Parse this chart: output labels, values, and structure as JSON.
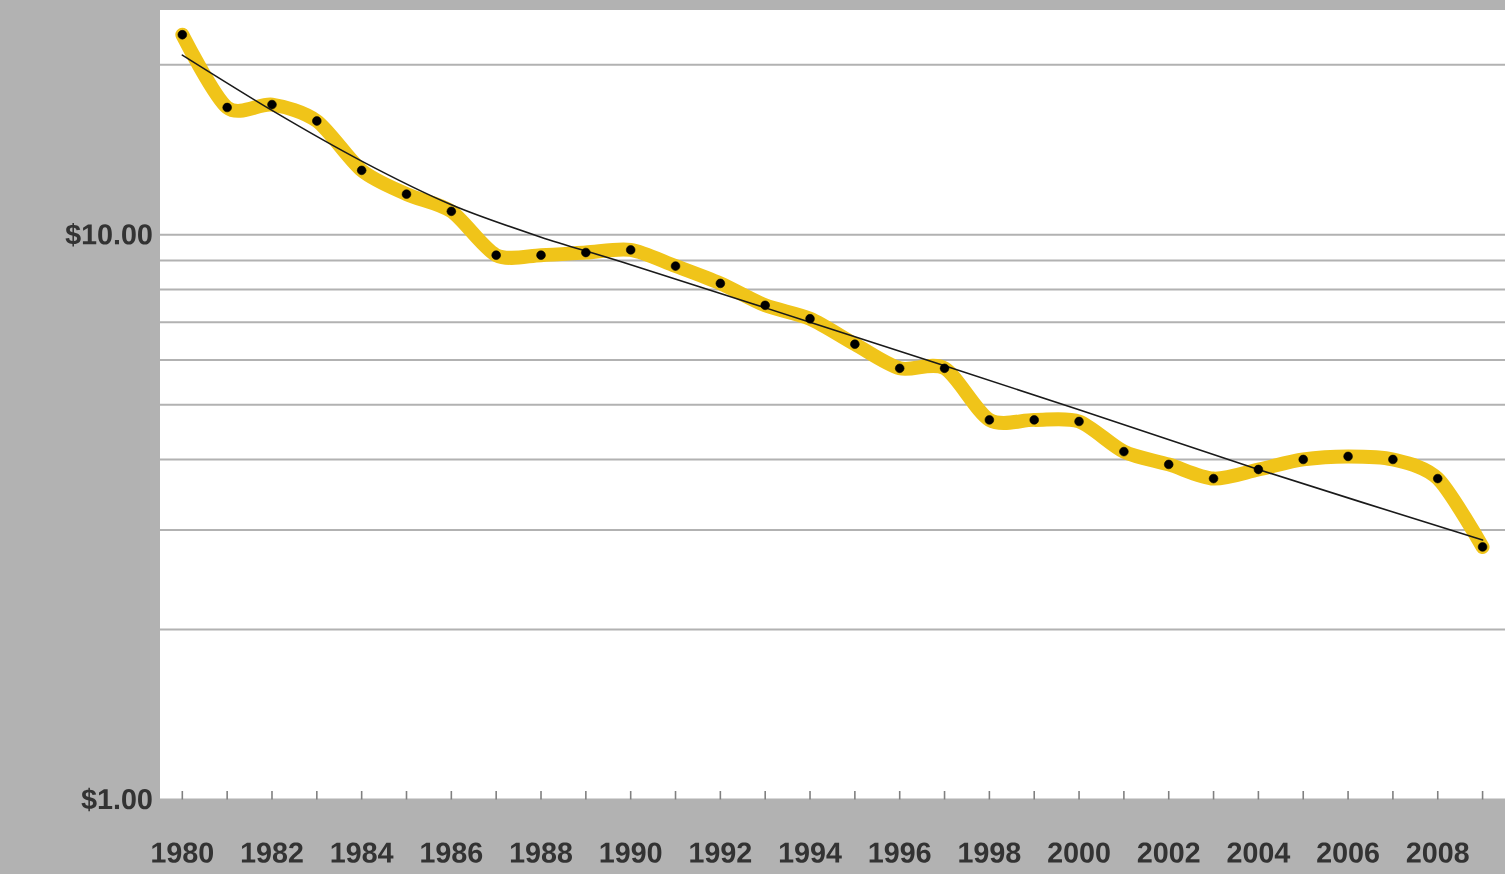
{
  "chart_data": {
    "type": "line",
    "log": "y",
    "grid": "y",
    "xlim": [
      1979.5,
      2009.5
    ],
    "ylim": [
      1,
      25
    ],
    "xticks": [
      1980,
      {
        "value": 1981,
        "label": null
      },
      1982,
      {
        "value": 1983,
        "label": null
      },
      1984,
      {
        "value": 1985,
        "label": null
      },
      1986,
      {
        "value": 1987,
        "label": null
      },
      1988,
      {
        "value": 1989,
        "label": null
      },
      1990,
      {
        "value": 1991,
        "label": null
      },
      1992,
      {
        "value": 1993,
        "label": null
      },
      1994,
      {
        "value": 1995,
        "label": null
      },
      1996,
      {
        "value": 1997,
        "label": null
      },
      1998,
      {
        "value": 1999,
        "label": null
      },
      2000,
      {
        "value": 2001,
        "label": null
      },
      2002,
      {
        "value": 2003,
        "label": null
      },
      2004,
      {
        "value": 2005,
        "label": null
      },
      2006,
      {
        "value": 2007,
        "label": null
      },
      2008,
      {
        "value": 2009,
        "label": null
      }
    ],
    "yticks": [
      {
        "value": 1,
        "label": "$1.00"
      },
      {
        "value": 2,
        "label": null
      },
      {
        "value": 3,
        "label": null
      },
      {
        "value": 4,
        "label": null
      },
      {
        "value": 5,
        "label": null
      },
      {
        "value": 6,
        "label": null
      },
      {
        "value": 7,
        "label": null
      },
      {
        "value": 8,
        "label": null
      },
      {
        "value": 9,
        "label": null
      },
      {
        "value": 10,
        "label": "$10.00"
      },
      {
        "value": 20,
        "label": null
      }
    ],
    "x": [
      1980,
      1981,
      1982,
      1983,
      1984,
      1985,
      1986,
      1987,
      1988,
      1989,
      1990,
      1991,
      1992,
      1993,
      1994,
      1995,
      1996,
      1997,
      1998,
      1999,
      2000,
      2001,
      2002,
      2003,
      2004,
      2005,
      2006,
      2007,
      2008,
      2009
    ],
    "series": [
      {
        "color": "#f0c419",
        "marker": "circle",
        "values": [
          22.6,
          16.8,
          17.0,
          15.9,
          13.0,
          11.8,
          11.0,
          9.2,
          9.2,
          9.3,
          9.4,
          8.8,
          8.2,
          7.5,
          7.1,
          6.4,
          5.8,
          5.8,
          4.7,
          4.7,
          4.67,
          4.13,
          3.92,
          3.7,
          3.84,
          4.0,
          4.05,
          4.0,
          3.7,
          2.8
        ]
      },
      {
        "type": "line",
        "color": "#1a1a1a",
        "marker": "none",
        "x": [
          1980,
          1982,
          1984,
          1986,
          1988,
          1990,
          1994,
          2000,
          2004,
          2009
        ],
        "values": [
          20.8,
          16.6,
          13.5,
          11.3,
          9.9,
          8.85,
          7.0,
          4.9,
          3.84,
          2.88
        ]
      }
    ]
  }
}
